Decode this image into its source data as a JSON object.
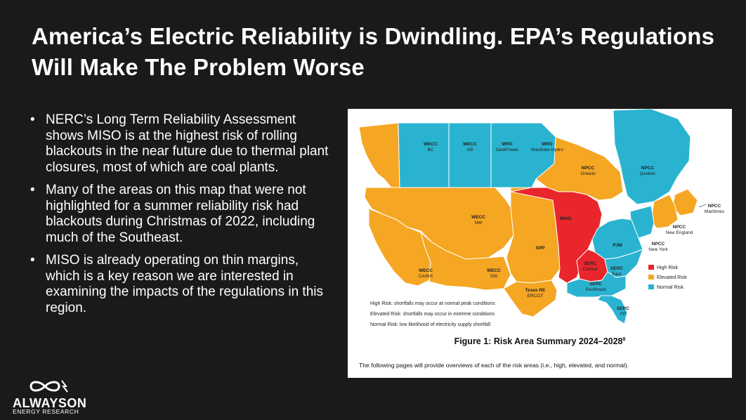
{
  "slide": {
    "title": "America’s Electric Reliability is Dwindling. EPA’s Regulations Will Make The Problem Worse",
    "bullets": [
      "NERC’s Long Term Reliability Assessment shows MISO is at the highest risk of rolling blackouts in the near future due to thermal plant closures, most of which are coal plants.",
      "Many of the areas on this map that were not highlighted for a summer reliability risk had blackouts during Christmas of 2022, including much of the Southeast.",
      "MISO is already operating on thin margins, which is a key reason we are interested in examining the impacts of the regulations in this region."
    ],
    "bullet_glyph": "•"
  },
  "figure": {
    "caption": "Figure 1: Risk Area Summary 2024–2028",
    "caption_ref": "8",
    "footnote": "The following pages will provide overviews of each of the risk areas (i.e., high, elevated, and normal).",
    "notes": [
      "High Risk: shortfalls may occur at normal peak conditions",
      "Elevated Risk: shortfalls may occur in extreme conditions",
      "Normal Risk: low likelihood of electricity supply shortfall"
    ],
    "legend": [
      {
        "label": "High Risk",
        "color": "#e8262c"
      },
      {
        "label": "Elevated Risk",
        "color": "#f5a623"
      },
      {
        "label": "Normal Risk",
        "color": "#2ab3d0"
      }
    ],
    "regions": {
      "wecc_bc": {
        "top": "WECC",
        "bottom": "BC"
      },
      "wecc_ab": {
        "top": "WECC",
        "bottom": "AB"
      },
      "mro_sask": {
        "top": "MRO",
        "bottom": "SaskPower"
      },
      "mro_man": {
        "top": "MRO",
        "bottom": "Manitoba Hydro"
      },
      "npcc_ont": {
        "top": "NPCC",
        "bottom": "Ontario"
      },
      "npcc_que": {
        "top": "NPCC",
        "bottom": "Quebec"
      },
      "npcc_mar": {
        "top": "NPCC",
        "bottom": "Maritimes"
      },
      "npcc_ne": {
        "top": "NPCC",
        "bottom": "New England"
      },
      "npcc_ny": {
        "top": "NPCC",
        "bottom": "New York"
      },
      "wecc_nw": {
        "top": "WECC",
        "bottom": "NW"
      },
      "wecc_camx": {
        "top": "WECC",
        "bottom": "CA/MX"
      },
      "wecc_sw": {
        "top": "WECC",
        "bottom": "SW"
      },
      "spp": {
        "top": "SPP"
      },
      "miso": {
        "top": "MISO"
      },
      "pjm": {
        "top": "PJM"
      },
      "serc_c": {
        "top": "SERC",
        "bottom": "Central"
      },
      "serc_e": {
        "top": "SERC",
        "bottom": "East"
      },
      "serc_se": {
        "top": "SERC",
        "bottom": "Southeast"
      },
      "serc_fp": {
        "top": "SERC",
        "bottom": "FP"
      },
      "texas": {
        "top": "Texas RE",
        "bottom": "ERCOT"
      }
    }
  },
  "logo": {
    "wordmark": "ALWAYSON",
    "tagline": "ENERGY RESEARCH"
  }
}
